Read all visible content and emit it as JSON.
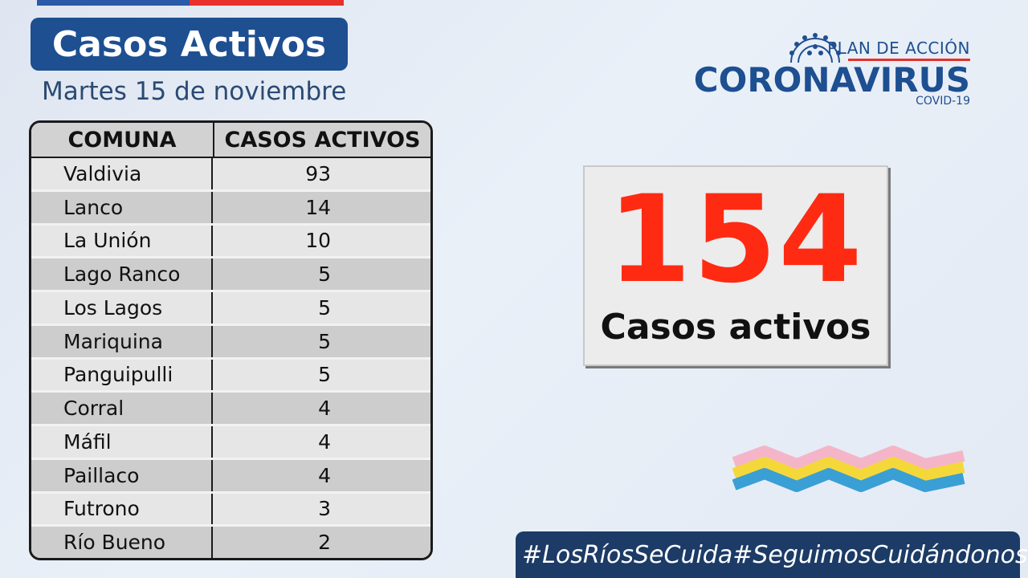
{
  "title": "Casos Activos",
  "date": "Martes 15 de noviembre",
  "table": {
    "headers": [
      "COMUNA",
      "CASOS ACTIVOS"
    ],
    "rows": [
      {
        "comuna": "Valdivia",
        "casos": "93"
      },
      {
        "comuna": "Lanco",
        "casos": "14"
      },
      {
        "comuna": "La Unión",
        "casos": "10"
      },
      {
        "comuna": "Lago Ranco",
        "casos": "5"
      },
      {
        "comuna": "Los Lagos",
        "casos": "5"
      },
      {
        "comuna": "Mariquina",
        "casos": "5"
      },
      {
        "comuna": "Panguipulli",
        "casos": "5"
      },
      {
        "comuna": "Corral",
        "casos": "4"
      },
      {
        "comuna": "Máfil",
        "casos": "4"
      },
      {
        "comuna": "Paillaco",
        "casos": "4"
      },
      {
        "comuna": "Futrono",
        "casos": "3"
      },
      {
        "comuna": "Río Bueno",
        "casos": "2"
      }
    ]
  },
  "total": {
    "value": "154",
    "label": "Casos activos"
  },
  "logo": {
    "plan": "PLAN DE ACCIÓN",
    "main": "CORONAVIRUS",
    "sub": "COVID-19",
    "icon": "virus-icon"
  },
  "hashtags": [
    "#LosRíosSeCuida",
    "#SeguimosCuidándonos"
  ],
  "colors": {
    "brand_blue": "#1d4f91",
    "accent_red": "#e8312a",
    "number_red": "#ff2a12",
    "footer_blue": "#1c3b66"
  }
}
